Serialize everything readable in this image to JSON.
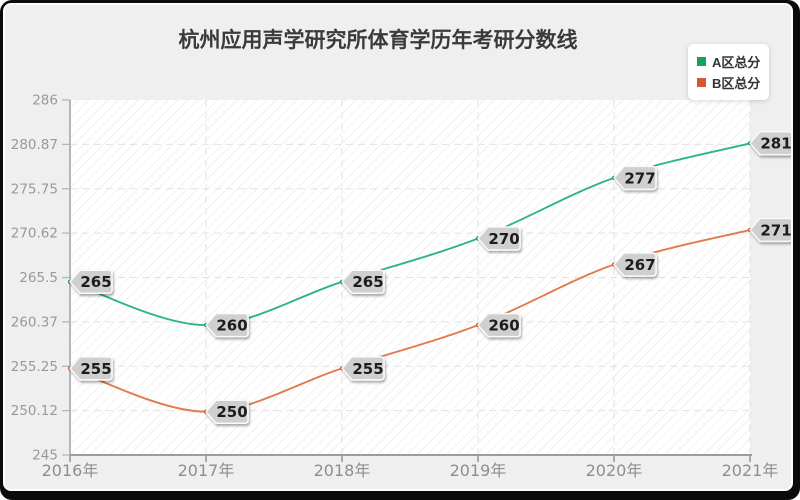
{
  "title": "杭州应用声学研究所体育学历年考研分数线",
  "legend": {
    "items": [
      "A区总分",
      "B区总分"
    ]
  },
  "chart_data": {
    "type": "line",
    "smooth": true,
    "title": "杭州应用声学研究所体育学历年考研分数线",
    "x_categories": [
      "2016年",
      "2017年",
      "2018年",
      "2019年",
      "2020年",
      "2021年"
    ],
    "y_tick_labels": [
      "286",
      "280.87",
      "275.75",
      "270.62",
      "265.5",
      "260.37",
      "255.25",
      "250.12",
      "245"
    ],
    "y_min": 245,
    "y_max": 286,
    "grid": "dashed",
    "legend_position": "top-right",
    "series": [
      {
        "name": "A区总分",
        "values": [
          265,
          260,
          265,
          270,
          277,
          281
        ],
        "line_color": "#2eb48a",
        "marker_color": "#13a062"
      },
      {
        "name": "B区总分",
        "values": [
          255,
          250,
          255,
          260,
          267,
          271
        ],
        "line_color": "#e3794f",
        "marker_color": "#d4592e"
      }
    ],
    "point_label_style": {
      "background": "#cfcfcf",
      "border": "#fafafa",
      "text_color": "#1a1a1a"
    }
  },
  "colors": {
    "panel_background": "#efefef",
    "plot_background": "#ffffff",
    "frame": "#0b0b0b",
    "gridline": "#e2e2e2",
    "axis_line": "#9c9c9c",
    "tick_text": "#999999"
  }
}
